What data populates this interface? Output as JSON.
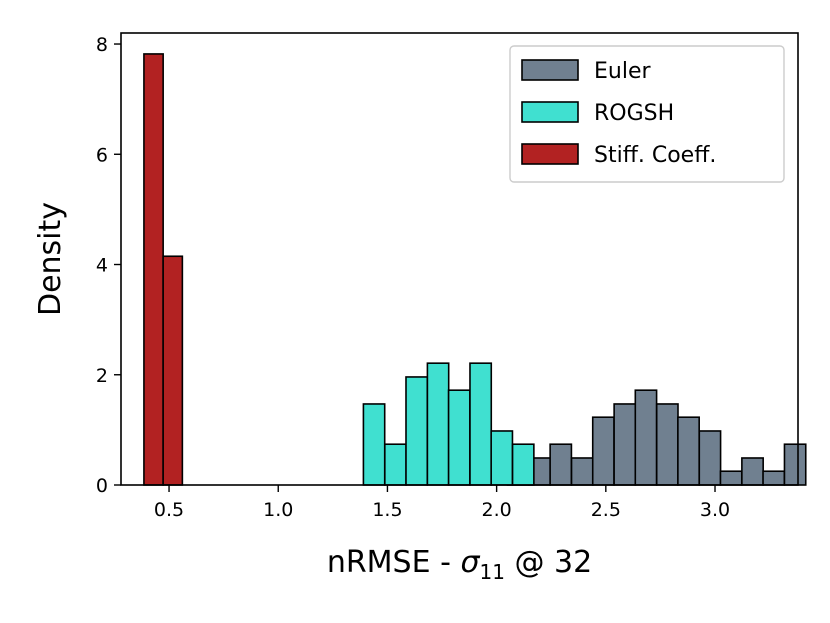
{
  "chart_data": {
    "type": "bar",
    "xlabel_main": "nRMSE - ",
    "xlabel_symbol": "σ",
    "xlabel_subscript": "11",
    "xlabel_suffix": " @ 32",
    "ylabel": "Density",
    "xlim": [
      0.28,
      3.38
    ],
    "ylim": [
      0,
      8.2
    ],
    "xticks": [
      0.5,
      1.0,
      1.5,
      2.0,
      2.5,
      3.0
    ],
    "xtick_labels": [
      "0.5",
      "1.0",
      "1.5",
      "2.0",
      "2.5",
      "3.0"
    ],
    "yticks": [
      0,
      2,
      4,
      6,
      8
    ],
    "ytick_labels": [
      "0",
      "2",
      "4",
      "6",
      "8"
    ],
    "grid": false,
    "legend_position": "top-right",
    "series": [
      {
        "name": "Euler",
        "color": "#708090",
        "bin_width": 0.0975,
        "bins": [
          {
            "x0": 2.05,
            "value": 0.25
          },
          {
            "x0": 2.148,
            "value": 0.49
          },
          {
            "x0": 2.245,
            "value": 0.74
          },
          {
            "x0": 2.343,
            "value": 0.49
          },
          {
            "x0": 2.44,
            "value": 1.23
          },
          {
            "x0": 2.538,
            "value": 1.47
          },
          {
            "x0": 2.635,
            "value": 1.72
          },
          {
            "x0": 2.733,
            "value": 1.47
          },
          {
            "x0": 2.83,
            "value": 1.23
          },
          {
            "x0": 2.928,
            "value": 0.98
          },
          {
            "x0": 3.025,
            "value": 0.25
          },
          {
            "x0": 3.123,
            "value": 0.49
          },
          {
            "x0": 3.22,
            "value": 0.25
          },
          {
            "x0": 3.318,
            "value": 0.74
          }
        ]
      },
      {
        "name": "ROGSH",
        "color": "#40E0D0",
        "bin_width": 0.0975,
        "bins": [
          {
            "x0": 1.39,
            "value": 1.47
          },
          {
            "x0": 1.488,
            "value": 0.74
          },
          {
            "x0": 1.585,
            "value": 1.96
          },
          {
            "x0": 1.683,
            "value": 2.21
          },
          {
            "x0": 1.78,
            "value": 1.72
          },
          {
            "x0": 1.878,
            "value": 2.21
          },
          {
            "x0": 1.975,
            "value": 0.98
          },
          {
            "x0": 2.073,
            "value": 0.74
          }
        ]
      },
      {
        "name": "Stiff. Coeff.",
        "color": "#B22222",
        "bin_width": 0.088,
        "bins": [
          {
            "x0": 0.385,
            "value": 7.82
          },
          {
            "x0": 0.473,
            "value": 4.15
          }
        ]
      }
    ]
  }
}
